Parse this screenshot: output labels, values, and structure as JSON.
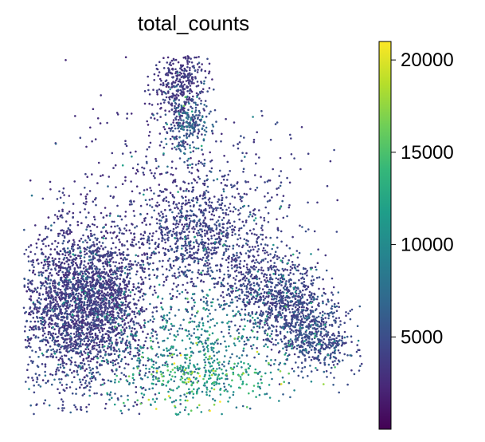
{
  "chart_data": {
    "type": "scatter",
    "title": "total_counts",
    "xlabel": "",
    "ylabel": "",
    "grid": false,
    "axes_visible": false,
    "colormap": "viridis",
    "colorbar": {
      "label": "",
      "range": [
        0,
        21000
      ],
      "ticks": [
        5000,
        10000,
        15000,
        20000
      ],
      "tick_labels": [
        "5000",
        "10000",
        "15000",
        "20000"
      ]
    },
    "colormap_stops": [
      "#440154",
      "#482878",
      "#3e4989",
      "#31688e",
      "#26828e",
      "#1f9e89",
      "#35b779",
      "#6ece58",
      "#b5de2b",
      "#fde725"
    ],
    "point_color_range": [
      500,
      21000
    ],
    "point_color_note": "color encodes total_counts"
  }
}
